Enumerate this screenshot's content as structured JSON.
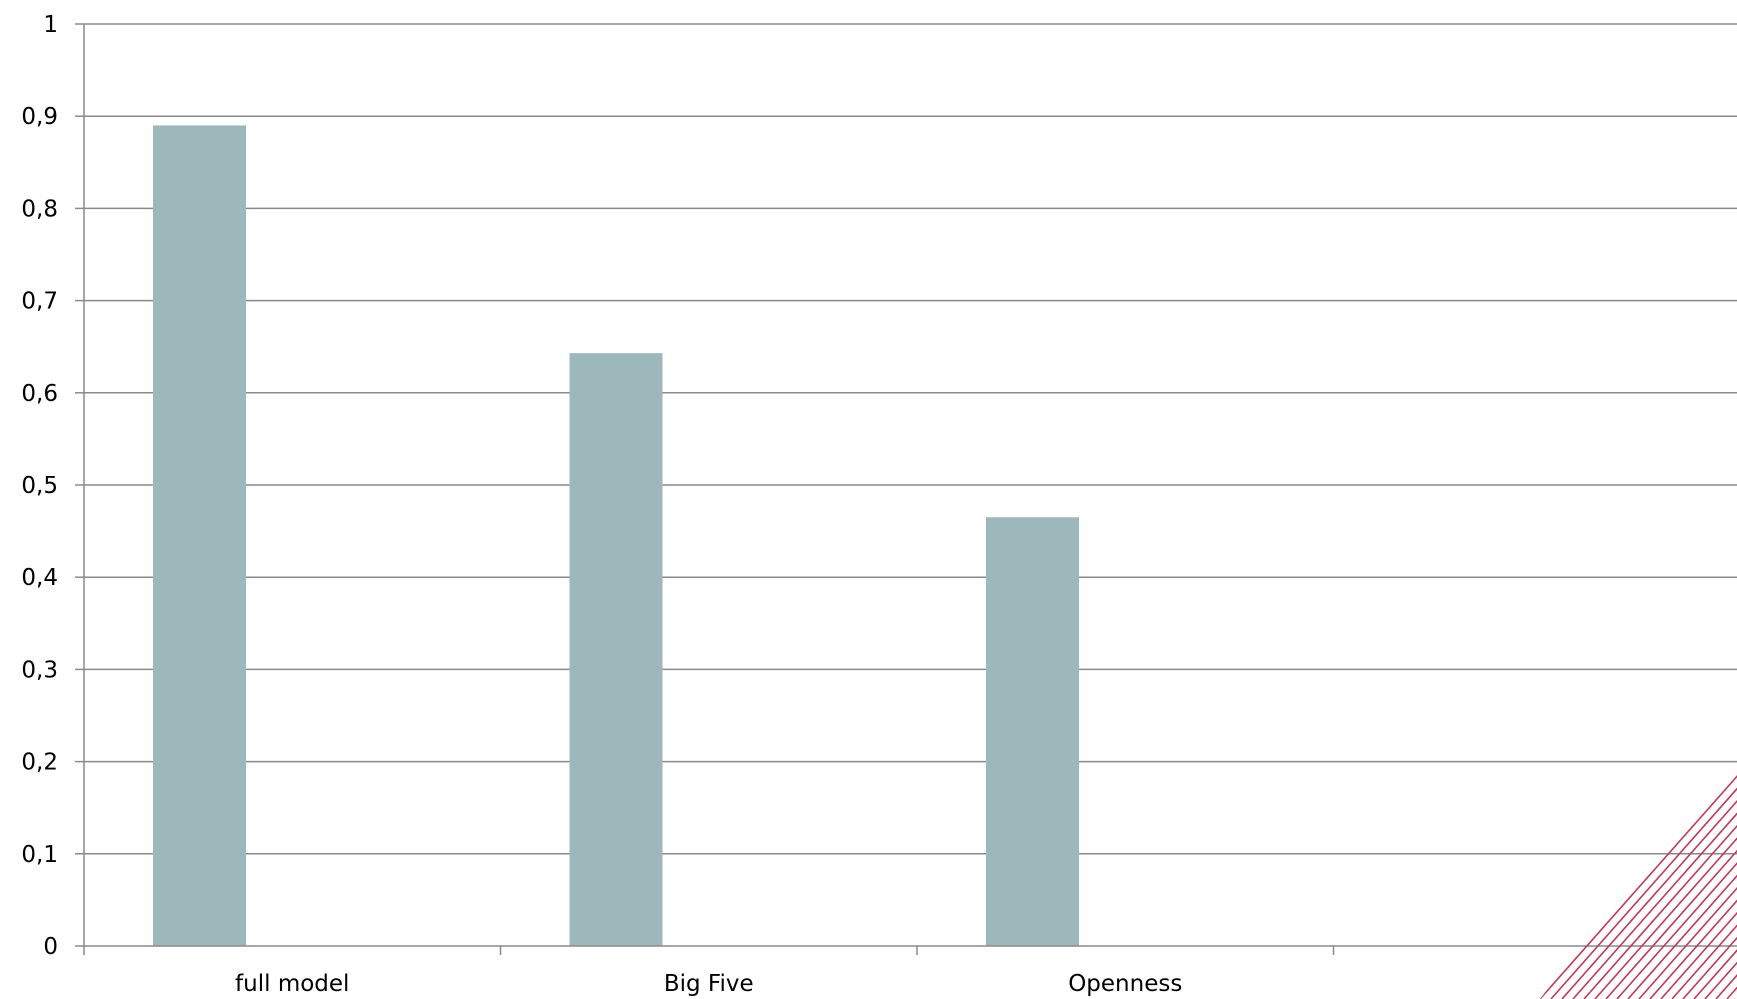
{
  "chart_data": {
    "type": "bar",
    "categories": [
      "full model",
      "Big Five",
      "Openness",
      ""
    ],
    "values": [
      0.89,
      0.643,
      0.465,
      null
    ],
    "ylim": [
      0,
      1
    ],
    "yticks": [
      "0",
      "0,1",
      "0,2",
      "0,3",
      "0,4",
      "0,5",
      "0,6",
      "0,7",
      "0,8",
      "0,9",
      "1"
    ],
    "title": "",
    "xlabel": "",
    "ylabel": "",
    "grid": true,
    "legend": "none"
  },
  "colors": {
    "bar": "#9db8bb",
    "grid": "#8a8a8a",
    "axis": "#8a8a8a",
    "hatch": "#c0395a"
  }
}
